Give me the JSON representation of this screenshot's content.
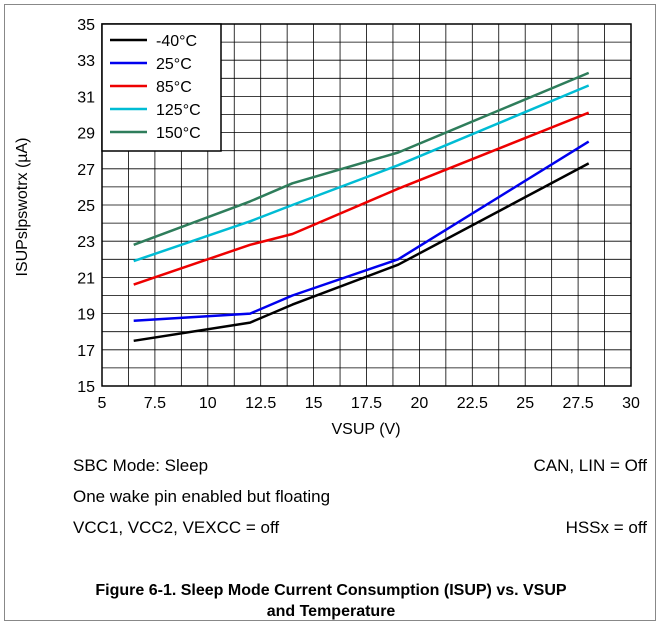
{
  "chart_data": {
    "type": "line",
    "xlabel": "VSUP (V)",
    "ylabel": "ISUPslpswotrx (µA)",
    "xlim": [
      5,
      30
    ],
    "ylim": [
      15,
      35
    ],
    "xticks": [
      5,
      7.5,
      10,
      12.5,
      15,
      17.5,
      20,
      22.5,
      25,
      27.5,
      30
    ],
    "xtick_labels": [
      "5",
      "7.5",
      "10",
      "12.5",
      "15",
      "17.5",
      "20",
      "22.5",
      "25",
      "27.5",
      "30"
    ],
    "yticks": [
      15,
      17,
      19,
      21,
      23,
      25,
      27,
      29,
      31,
      33,
      35
    ],
    "ytick_labels": [
      "15",
      "17",
      "19",
      "21",
      "23",
      "25",
      "27",
      "29",
      "31",
      "33",
      "35"
    ],
    "grid": true,
    "legend_position": "top-left",
    "series": [
      {
        "name": "-40°C",
        "color": "#000000",
        "x": [
          6.5,
          12,
          14,
          19,
          28
        ],
        "y": [
          17.5,
          18.5,
          19.5,
          21.7,
          27.3
        ]
      },
      {
        "name": "25°C",
        "color": "#0000ee",
        "x": [
          6.5,
          12,
          14,
          19,
          28
        ],
        "y": [
          18.6,
          19.0,
          20.0,
          22.0,
          28.5
        ]
      },
      {
        "name": "85°C",
        "color": "#ee0000",
        "x": [
          6.5,
          12,
          14,
          19,
          28
        ],
        "y": [
          20.6,
          22.8,
          23.4,
          25.9,
          30.1
        ]
      },
      {
        "name": "125°C",
        "color": "#00bcd4",
        "x": [
          6.5,
          12,
          14,
          19,
          28
        ],
        "y": [
          21.9,
          24.1,
          25.0,
          27.2,
          31.6
        ]
      },
      {
        "name": "150°C",
        "color": "#2e7d5b",
        "x": [
          6.5,
          12,
          14,
          19,
          28
        ],
        "y": [
          22.8,
          25.2,
          26.2,
          27.9,
          32.3
        ]
      }
    ]
  },
  "notes": {
    "mode": "SBC Mode: Sleep",
    "can_lin": "CAN, LIN = Off",
    "wake_pin": "One wake pin enabled but floating",
    "vcc": "VCC1, VCC2, VEXCC = off",
    "hssx": "HSSx = off"
  },
  "caption": {
    "line1": "Figure 6-1. Sleep Mode Current Consumption (ISUP) vs. VSUP",
    "line2": "and Temperature"
  }
}
